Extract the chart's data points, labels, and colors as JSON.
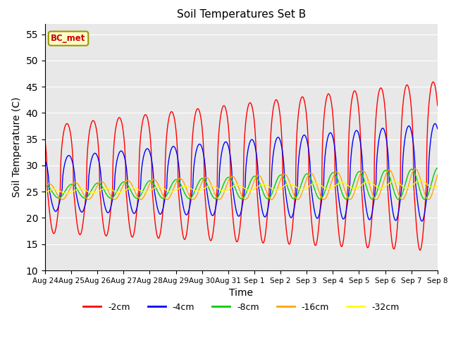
{
  "title": "Soil Temperatures Set B",
  "xlabel": "Time",
  "ylabel": "Soil Temperature (C)",
  "ylim": [
    10,
    57
  ],
  "yticks": [
    10,
    15,
    20,
    25,
    30,
    35,
    40,
    45,
    50,
    55
  ],
  "colors": {
    "-2cm": "#ff0000",
    "-4cm": "#0000ff",
    "-8cm": "#00cc00",
    "-16cm": "#ffa500",
    "-32cm": "#ffff00"
  },
  "legend_labels": [
    "-2cm",
    "-4cm",
    "-8cm",
    "-16cm",
    "-32cm"
  ],
  "annotation_text": "BC_met",
  "annotation_color": "#cc0000",
  "annotation_bg": "#ffffcc",
  "plot_bg": "#e8e8e8",
  "x_ticklabels": [
    "Aug 24",
    "Aug 25",
    "Aug 26",
    "Aug 27",
    "Aug 28",
    "Aug 29",
    "Aug 30",
    "Aug 31",
    "Sep 1",
    "Sep 2",
    "Sep 3",
    "Sep 4",
    "Sep 5",
    "Sep 6",
    "Sep 7",
    "Sep 8"
  ],
  "n_days": 15,
  "pts_per_day": 144
}
